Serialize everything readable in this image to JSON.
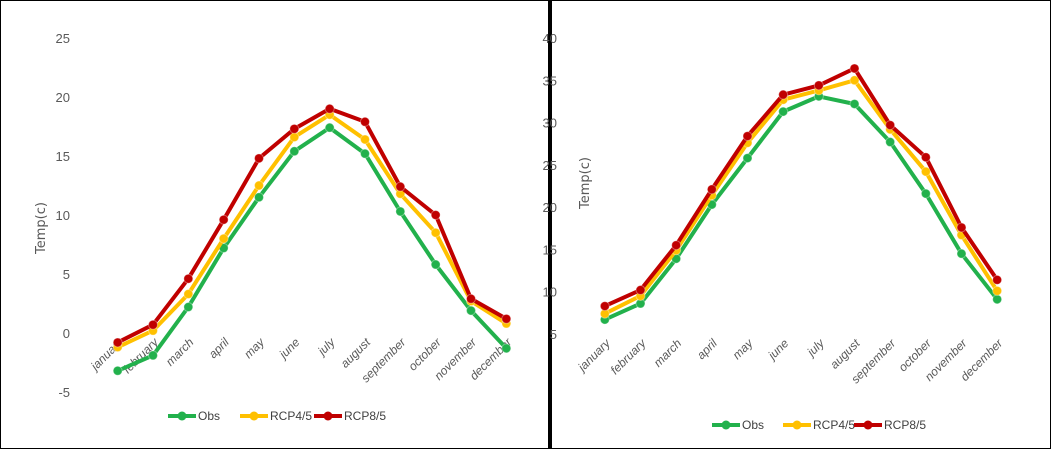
{
  "colors": {
    "Obs": "#22b14c",
    "RCP4/5": "#ffc000",
    "RCP8/5": "#c00000"
  },
  "chart_data": [
    {
      "type": "line",
      "ylabel": "Temp(c)",
      "xlabel": "",
      "ylim": [
        -5,
        25
      ],
      "yticks": [
        -5,
        0,
        5,
        10,
        15,
        20,
        25
      ],
      "grid": false,
      "legend": "bottom",
      "categories": [
        "january",
        "february",
        "march",
        "april",
        "may",
        "june",
        "july",
        "august",
        "september",
        "october",
        "november",
        "december"
      ],
      "series": [
        {
          "name": "Obs",
          "values": [
            -3.2,
            -1.9,
            2.2,
            7.2,
            11.5,
            15.4,
            17.4,
            15.2,
            10.3,
            5.8,
            1.9,
            -1.3
          ]
        },
        {
          "name": "RCP4/5",
          "values": [
            -1.2,
            0.2,
            3.3,
            8.0,
            12.5,
            16.6,
            18.5,
            16.4,
            11.8,
            8.5,
            2.7,
            0.8
          ]
        },
        {
          "name": "RCP8/5",
          "values": [
            -0.8,
            0.7,
            4.6,
            9.6,
            14.8,
            17.3,
            19.0,
            17.9,
            12.4,
            10.0,
            2.9,
            1.2
          ]
        }
      ]
    },
    {
      "type": "line",
      "ylabel": "Temp(c)",
      "xlabel": "",
      "ylim": [
        5,
        40
      ],
      "yticks": [
        5,
        10,
        15,
        20,
        25,
        30,
        35,
        40
      ],
      "grid": false,
      "legend": "bottom",
      "categories": [
        "january",
        "february",
        "march",
        "april",
        "may",
        "june",
        "july",
        "august",
        "september",
        "october",
        "november",
        "december"
      ],
      "series": [
        {
          "name": "Obs",
          "values": [
            6.7,
            8.6,
            13.9,
            20.3,
            25.8,
            31.3,
            33.1,
            32.2,
            27.7,
            21.6,
            14.5,
            9.1
          ]
        },
        {
          "name": "RCP4/5",
          "values": [
            7.4,
            9.5,
            14.9,
            21.4,
            27.6,
            32.7,
            33.8,
            35.0,
            29.2,
            24.2,
            16.7,
            10.1
          ]
        },
        {
          "name": "RCP8/5",
          "values": [
            8.3,
            10.2,
            15.5,
            22.1,
            28.4,
            33.3,
            34.4,
            36.4,
            29.7,
            25.9,
            17.6,
            11.4
          ]
        }
      ]
    }
  ]
}
